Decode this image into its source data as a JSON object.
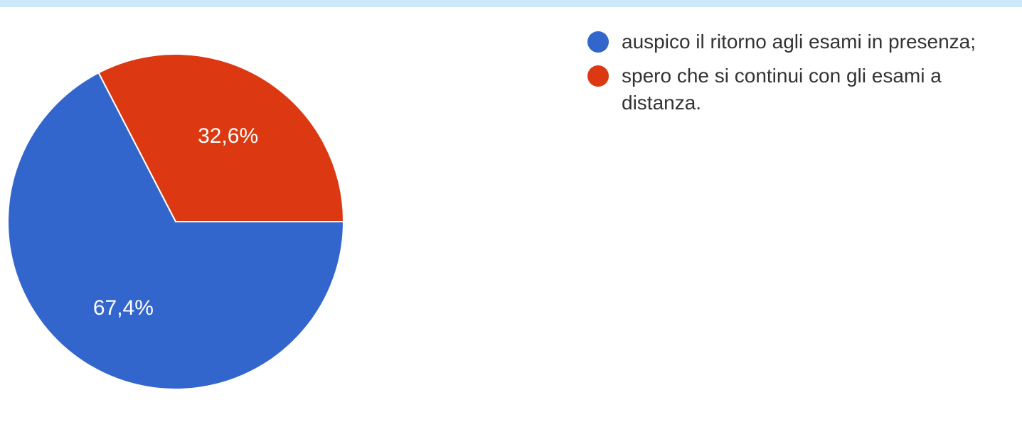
{
  "chart_data": {
    "type": "pie",
    "title": "",
    "slices": [
      {
        "label": "auspico il ritorno agli esami in presenza;",
        "value": 67.4,
        "display": "67,4%",
        "color": "#3366cc"
      },
      {
        "label": "spero che si continui con gli esami a distanza.",
        "value": 32.6,
        "display": "32,6%",
        "color": "#dc3912"
      }
    ],
    "legend_position": "right"
  },
  "legend": {
    "items": [
      {
        "label": "auspico il ritorno agli esami in presenza;",
        "color": "#3366cc"
      },
      {
        "label": "spero che si continui con gli esami a distanza.",
        "color": "#dc3912"
      }
    ]
  },
  "colors": {
    "top_band": "#cde8f8"
  }
}
